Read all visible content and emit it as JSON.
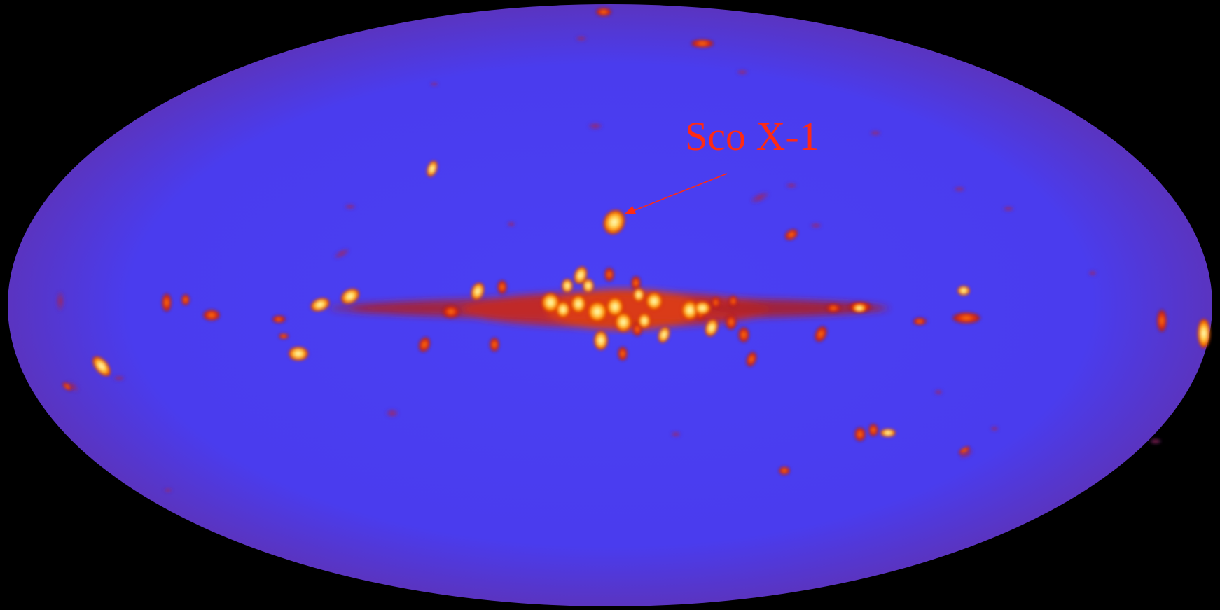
{
  "annotation": {
    "label": "Sco X-1",
    "color": "#ff2a14"
  },
  "colors": {
    "background": "#000000",
    "sky": "#4a3ef0",
    "sky_edge": "#5a38c8",
    "glow": "#c01e1e",
    "source_core": "#fff3a0",
    "source_mid": "#ffb000",
    "source_edge": "#e02000"
  }
}
